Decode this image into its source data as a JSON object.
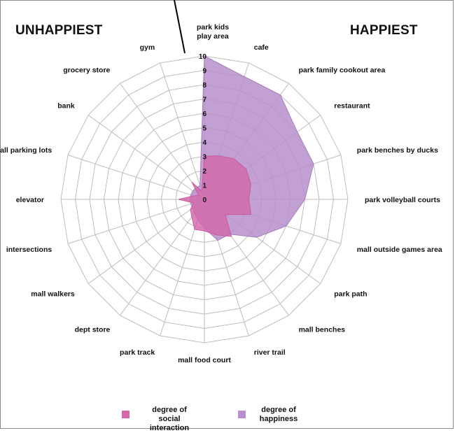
{
  "chart_data": {
    "type": "radar",
    "left_heading": "UNHAPPIEST",
    "right_heading": "HAPPIEST",
    "categories": [
      "park kids\nplay area",
      "cafe",
      "park family cookout area",
      "restaurant",
      "park benches by ducks",
      "park volleyball courts",
      "mall outside games area",
      "park path",
      "mall benches",
      "river trail",
      "mall food court",
      "park track",
      "dept store",
      "mall walkers",
      "intersections",
      "elevator",
      "mall parking lots",
      "bank",
      "grocery store",
      "gym"
    ],
    "r_ticks": [
      "0",
      "1",
      "2",
      "3",
      "4",
      "5",
      "6",
      "7",
      "8",
      "9",
      "10"
    ],
    "rlim": [
      0,
      10
    ],
    "grid": true,
    "legend_position": "bottom",
    "series": [
      {
        "name": "degree of\nhappiness",
        "color": "#b98fcd",
        "values": [
          10,
          9,
          9,
          8,
          8,
          7,
          6,
          4.5,
          3,
          3,
          2,
          1.5,
          1.2,
          1,
          1,
          1,
          1,
          1,
          1,
          1
        ]
      },
      {
        "name": "degree of\nsocial interaction",
        "color": "#d369aa",
        "values": [
          3,
          3.2,
          3.5,
          3.6,
          3.4,
          3.1,
          3.4,
          1.8,
          3.2,
          2.6,
          2.2,
          2.2,
          1.5,
          1.2,
          0.8,
          1.8,
          0.8,
          0.5,
          1.5,
          0.6
        ]
      }
    ]
  }
}
